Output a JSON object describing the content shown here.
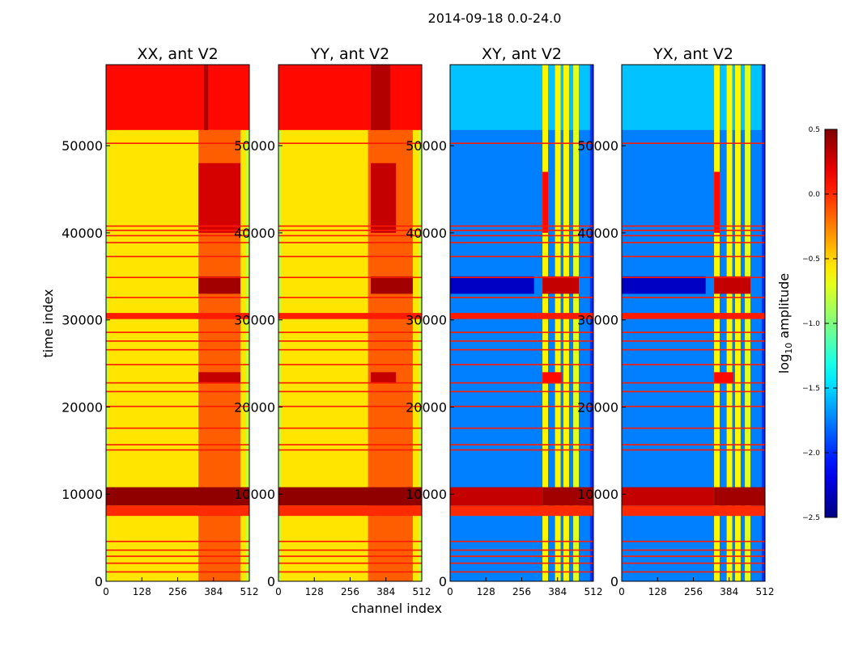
{
  "chart_data": {
    "type": "heatmap",
    "title": "2014-09-18 0.0-24.0",
    "xlabel": "channel index",
    "ylabel": "time index",
    "xlim": [
      0,
      512
    ],
    "ylim": [
      0,
      59300
    ],
    "xticks": [
      0,
      128,
      256,
      384,
      512
    ],
    "yticks": [
      0,
      10000,
      20000,
      30000,
      40000,
      50000
    ],
    "colormap": "jet",
    "colorbar": {
      "label_main": "log",
      "label_sub": "10",
      "label_rest": " amplitude",
      "range": [
        -2.5,
        0.5
      ],
      "ticks": [
        "0.5",
        "0.0",
        "−0.5",
        "−1.0",
        "−1.5",
        "−2.0",
        "−2.5"
      ],
      "tick_values": [
        0.5,
        0.0,
        -0.5,
        -1.0,
        -1.5,
        -2.0,
        -2.5
      ]
    },
    "flag_value": 0.05,
    "flag_times": [
      1000,
      2000,
      2800,
      3500,
      4500,
      15000,
      15600,
      17500,
      20000,
      21700,
      22700,
      24800,
      26500,
      27500,
      28500,
      32500,
      34800,
      37200,
      38800,
      39600,
      40200,
      40700,
      50200
    ],
    "panels": [
      {
        "title": "XX, ant V2",
        "segments": [
          [
            0,
            59300,
            -0.55,
            0,
            512
          ],
          [
            0,
            51800,
            -0.15,
            330,
            480
          ],
          [
            0,
            51800,
            -0.85,
            0,
            8
          ],
          [
            0,
            51800,
            -0.8,
            500,
            512
          ],
          [
            22700,
            24000,
            0.3,
            330,
            480
          ],
          [
            33000,
            35000,
            0.4,
            330,
            480
          ],
          [
            40000,
            48000,
            0.25,
            330,
            480
          ],
          [
            51800,
            59300,
            0.1,
            0,
            512
          ],
          [
            51800,
            59300,
            0.35,
            350,
            365
          ],
          [
            30100,
            30800,
            0.05,
            0,
            512
          ],
          [
            7500,
            8700,
            0.0,
            0,
            512
          ],
          [
            8700,
            10800,
            0.45,
            0,
            512
          ]
        ]
      },
      {
        "title": "YY, ant V2",
        "segments": [
          [
            0,
            59300,
            -0.55,
            0,
            512
          ],
          [
            0,
            51800,
            -0.15,
            320,
            480
          ],
          [
            0,
            51800,
            -0.85,
            0,
            8
          ],
          [
            0,
            51800,
            -0.8,
            500,
            512
          ],
          [
            22700,
            24000,
            0.3,
            330,
            420
          ],
          [
            33000,
            35000,
            0.4,
            330,
            480
          ],
          [
            40000,
            48000,
            0.3,
            330,
            420
          ],
          [
            51800,
            59300,
            0.1,
            0,
            512
          ],
          [
            51800,
            59300,
            0.35,
            330,
            400
          ],
          [
            30100,
            30800,
            0.05,
            0,
            512
          ],
          [
            7500,
            8700,
            0.0,
            0,
            512
          ],
          [
            8700,
            10800,
            0.45,
            0,
            512
          ]
        ]
      },
      {
        "title": "XY, ant V2",
        "segments": [
          [
            0,
            59300,
            -1.75,
            0,
            512
          ],
          [
            51800,
            59300,
            -1.55,
            0,
            512
          ],
          [
            0,
            59300,
            -0.6,
            330,
            350
          ],
          [
            0,
            59300,
            -0.6,
            375,
            395
          ],
          [
            0,
            59300,
            -0.6,
            405,
            425
          ],
          [
            0,
            59300,
            -0.7,
            440,
            460
          ],
          [
            0,
            59300,
            -2.0,
            500,
            512
          ],
          [
            33000,
            35000,
            -2.3,
            0,
            300
          ],
          [
            40000,
            47000,
            0.1,
            330,
            350
          ],
          [
            33000,
            35000,
            0.3,
            330,
            460
          ],
          [
            22700,
            24000,
            0.1,
            330,
            400
          ],
          [
            30100,
            30800,
            0.05,
            0,
            512
          ],
          [
            7500,
            8700,
            0.0,
            0,
            512
          ],
          [
            8700,
            10800,
            0.3,
            0,
            330
          ],
          [
            8700,
            10800,
            0.4,
            330,
            512
          ]
        ]
      },
      {
        "title": "YX, ant V2",
        "segments": [
          [
            0,
            59300,
            -1.75,
            0,
            512
          ],
          [
            51800,
            59300,
            -1.55,
            0,
            512
          ],
          [
            0,
            59300,
            -0.6,
            330,
            350
          ],
          [
            0,
            59300,
            -0.6,
            375,
            395
          ],
          [
            0,
            59300,
            -0.6,
            405,
            425
          ],
          [
            0,
            59300,
            -0.7,
            440,
            460
          ],
          [
            0,
            59300,
            -2.0,
            500,
            512
          ],
          [
            33000,
            35000,
            -2.3,
            0,
            300
          ],
          [
            40000,
            47000,
            0.1,
            330,
            350
          ],
          [
            33000,
            35000,
            0.3,
            330,
            460
          ],
          [
            22700,
            24000,
            0.1,
            330,
            400
          ],
          [
            30100,
            30800,
            0.05,
            0,
            512
          ],
          [
            7500,
            8700,
            0.0,
            0,
            512
          ],
          [
            8700,
            10800,
            0.3,
            0,
            330
          ],
          [
            8700,
            10800,
            0.4,
            330,
            512
          ]
        ]
      }
    ]
  }
}
